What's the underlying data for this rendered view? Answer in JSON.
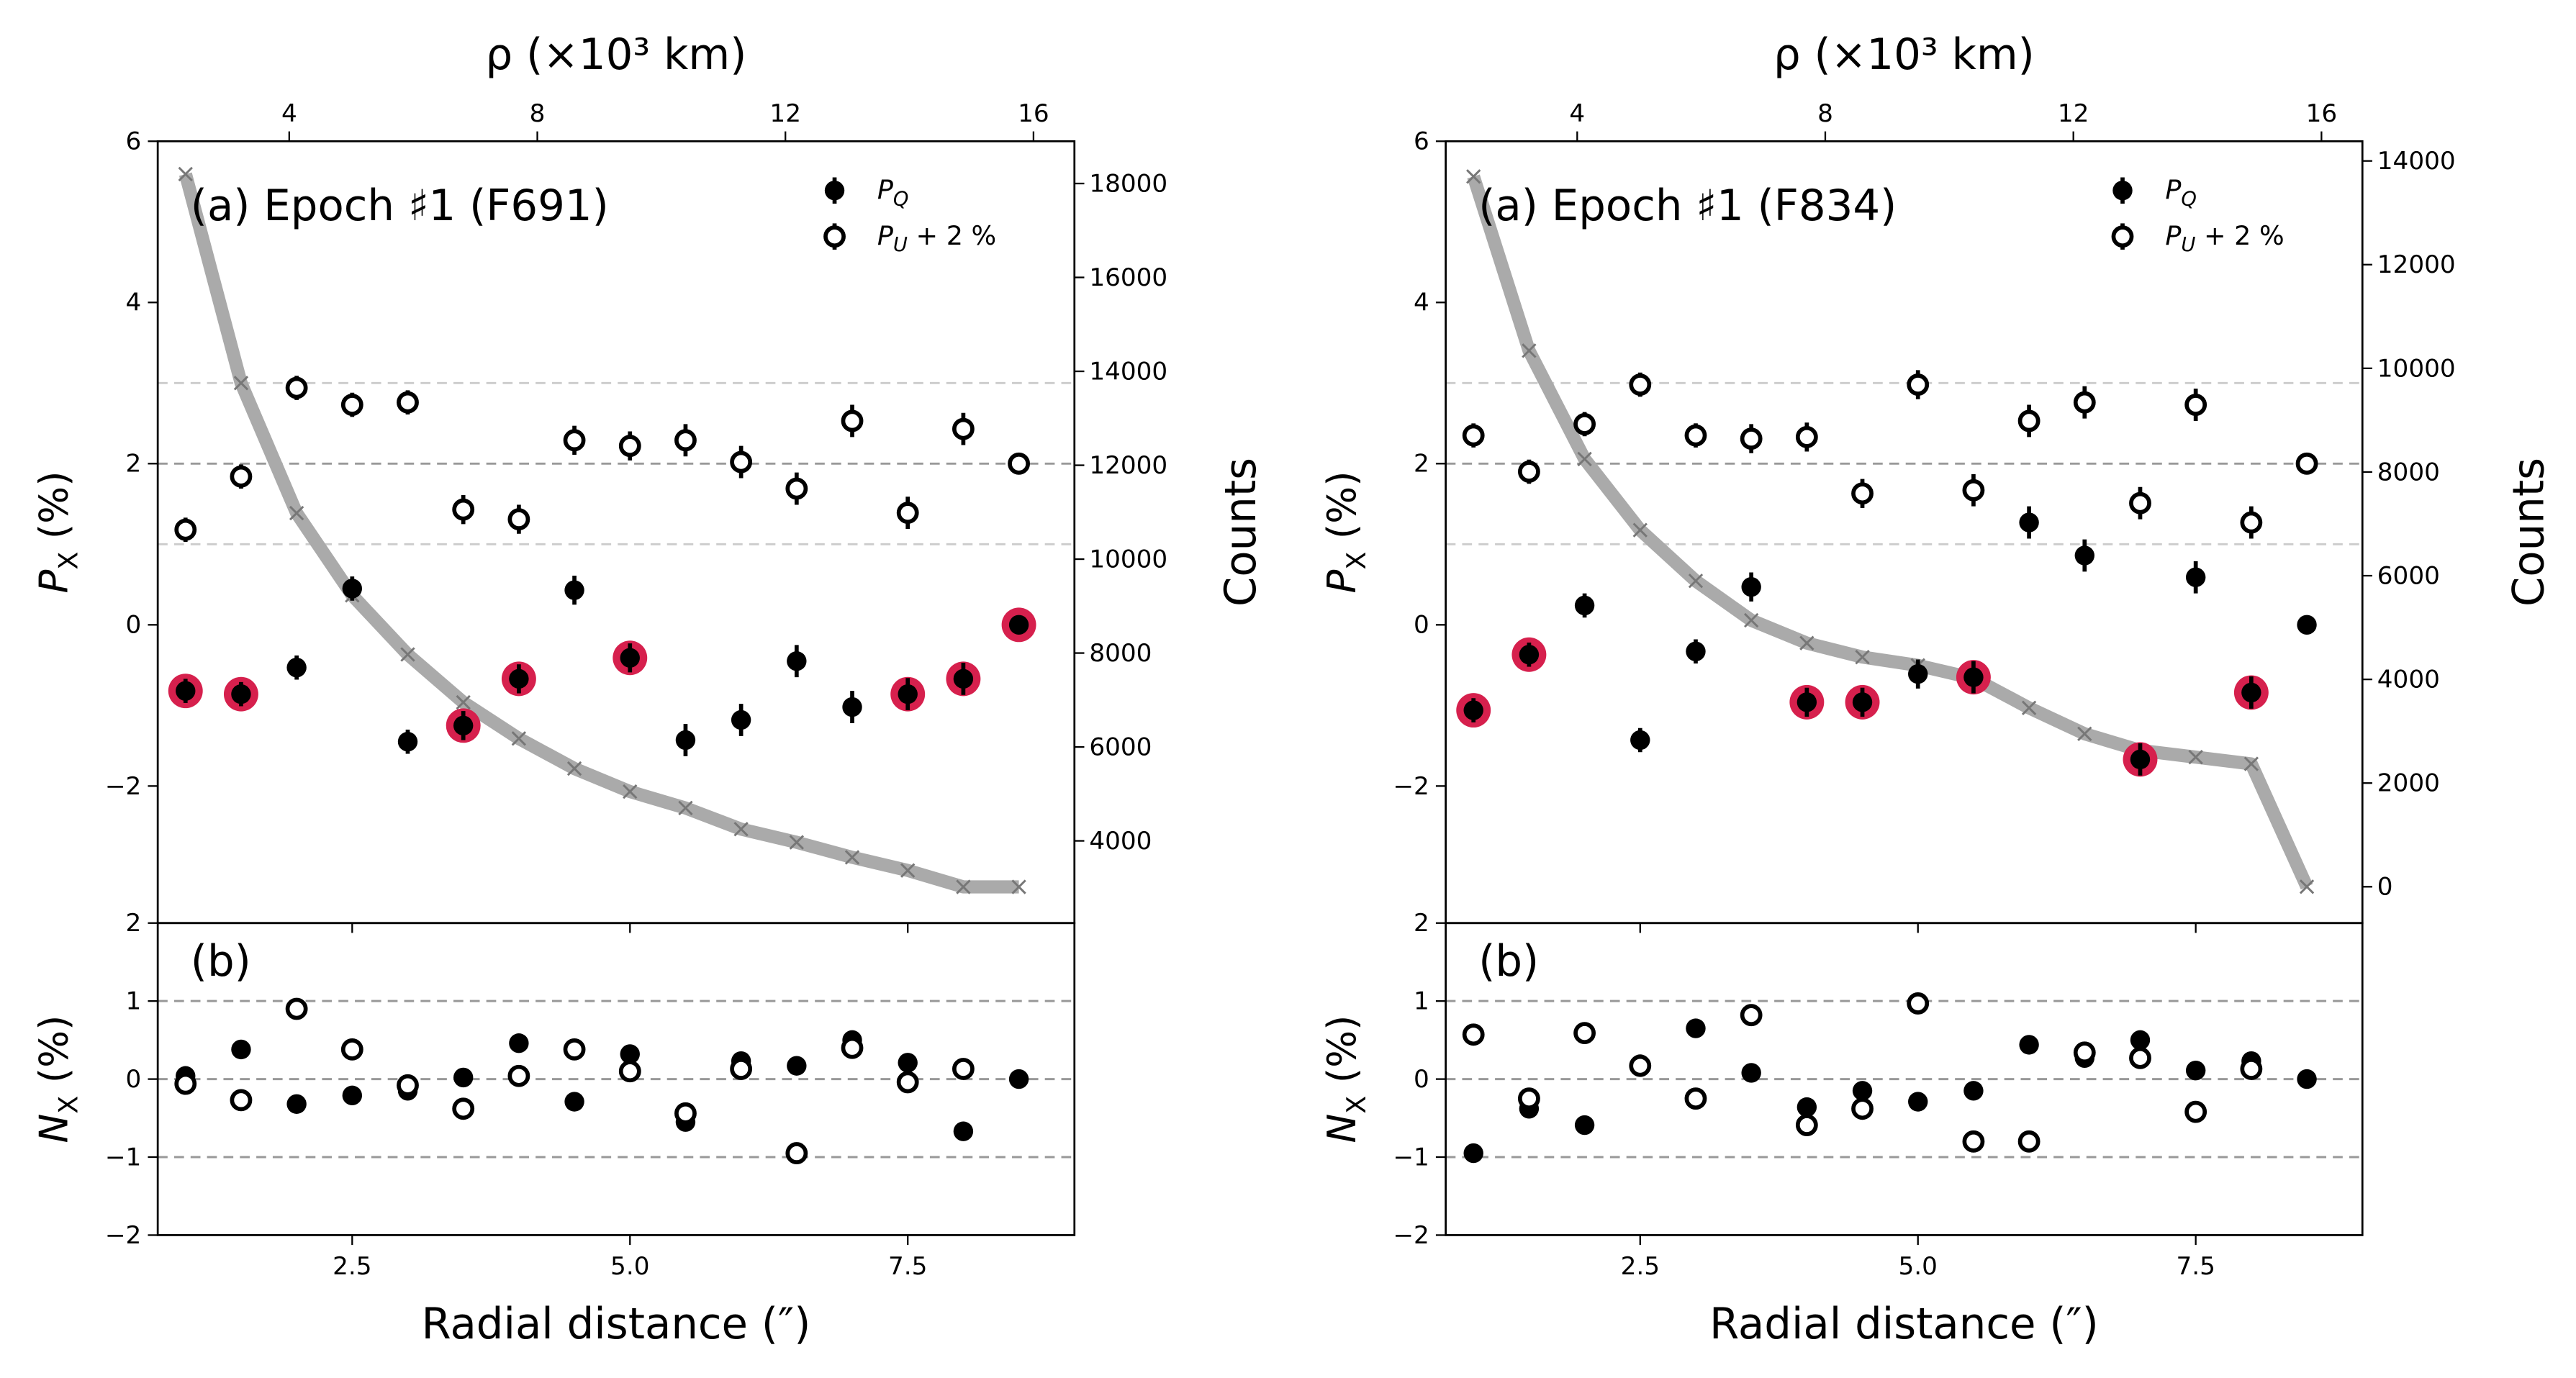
{
  "chart_data": [
    {
      "type": "scatter",
      "title": "ρ (×10³ km)",
      "annotation": "(a) Epoch ♯1 (F691)",
      "legend": "upper right",
      "x": [
        1.0,
        1.5,
        2.0,
        2.5,
        3.0,
        3.5,
        4.0,
        4.5,
        5.0,
        5.5,
        6.0,
        6.5,
        7.0,
        7.5,
        8.0,
        8.5
      ],
      "xlim": [
        0.75,
        9.0
      ],
      "xticks": [
        2.5,
        {
          "value": 5,
          "label": "5.0"
        },
        7.5
      ],
      "x2lim": [
        1.88,
        16.66
      ],
      "x2ticks": [
        4,
        8,
        12,
        16
      ],
      "ylim": [
        -3.7,
        6
      ],
      "yticks": [
        {
          "value": -2,
          "label": "−2"
        },
        0,
        2,
        4,
        6
      ],
      "ylabel": {
        "main": "P",
        "sub": "X",
        "rest": " (%)"
      },
      "y2lim": [
        2250,
        18900
      ],
      "y2ticks": [
        4000,
        6000,
        8000,
        10000,
        12000,
        14000,
        16000,
        18000
      ],
      "y2label": "Counts",
      "hlines": [
        {
          "value": 3,
          "color": "#cccccc"
        },
        {
          "value": 2,
          "color": "#999999"
        },
        {
          "value": 1,
          "color": "#cccccc"
        }
      ],
      "series": [
        {
          "name": "P",
          "name_sub": "Q",
          "color": "#000000",
          "marker": "filled",
          "values": [
            -0.82,
            -0.86,
            -0.53,
            0.45,
            -1.45,
            -1.25,
            -0.67,
            0.43,
            -0.41,
            -1.43,
            -1.18,
            -0.45,
            -1.02,
            -0.86,
            -0.67,
            0
          ],
          "errors": [
            0.15,
            0.15,
            0.15,
            0.15,
            0.15,
            0.18,
            0.18,
            0.18,
            0.18,
            0.2,
            0.2,
            0.2,
            0.2,
            0.2,
            0.2,
            0
          ]
        },
        {
          "name": "P",
          "name_sub": "U",
          "name_rest": " + 2 %",
          "color": "#000000",
          "marker": "open",
          "values": [
            1.18,
            1.84,
            2.94,
            2.73,
            2.76,
            1.43,
            1.31,
            2.29,
            2.22,
            2.29,
            2.02,
            1.69,
            2.53,
            1.39,
            2.43,
            2.0
          ],
          "errors": [
            0.15,
            0.15,
            0.15,
            0.15,
            0.15,
            0.18,
            0.18,
            0.18,
            0.18,
            0.2,
            0.2,
            0.2,
            0.2,
            0.2,
            0.2,
            0
          ]
        },
        {
          "color": "#d6204d",
          "marker": "ring",
          "values": [
            -0.82,
            -0.86,
            null,
            null,
            null,
            -1.25,
            -0.67,
            null,
            -0.41,
            null,
            null,
            null,
            null,
            -0.86,
            -0.67,
            0
          ]
        },
        {
          "color": "#aaaaaa",
          "marker": "line",
          "axis": "y2",
          "values": [
            18200,
            13750,
            10980,
            9230,
            7970,
            6950,
            6180,
            5540,
            5050,
            4700,
            4250,
            3970,
            3650,
            3370,
            3020,
            3020
          ]
        }
      ],
      "lower": {
        "annotation": "(b)",
        "xlabel": "Radial distance (″)",
        "ylim": [
          -2,
          2
        ],
        "yticks": [
          {
            "value": -2,
            "label": "−2"
          },
          {
            "value": -1,
            "label": "−1"
          },
          0,
          1,
          2
        ],
        "ylabel": {
          "main": "N",
          "sub": "X",
          "rest": " (%)"
        },
        "hlines": [
          {
            "value": 1,
            "color": "#999999"
          },
          {
            "value": 0,
            "color": "#999999"
          },
          {
            "value": -1,
            "color": "#999999"
          }
        ],
        "series": [
          {
            "color": "#000000",
            "marker": "filled",
            "values": [
              0.04,
              0.38,
              -0.32,
              -0.21,
              -0.15,
              0.02,
              0.46,
              -0.29,
              0.32,
              -0.55,
              0.23,
              0.17,
              0.5,
              0.21,
              -0.67,
              0
            ]
          },
          {
            "color": "#000000",
            "marker": "open",
            "values": [
              -0.06,
              -0.27,
              0.9,
              0.38,
              -0.08,
              -0.38,
              0.04,
              0.38,
              0.1,
              -0.44,
              0.13,
              -0.95,
              0.4,
              -0.04,
              0.13,
              null
            ]
          }
        ]
      }
    },
    {
      "type": "scatter",
      "title": "ρ (×10³ km)",
      "annotation": "(a) Epoch ♯1 (F834)",
      "legend": "upper right",
      "x": [
        1.0,
        1.5,
        2.0,
        2.5,
        3.0,
        3.5,
        4.0,
        4.5,
        5.0,
        5.5,
        6.0,
        6.5,
        7.0,
        7.5,
        8.0,
        8.5
      ],
      "xlim": [
        0.75,
        9.0
      ],
      "xticks": [
        2.5,
        {
          "value": 5,
          "label": "5.0"
        },
        7.5
      ],
      "x2lim": [
        1.88,
        16.66
      ],
      "x2ticks": [
        4,
        8,
        12,
        16
      ],
      "ylim": [
        -3.7,
        6
      ],
      "yticks": [
        {
          "value": -2,
          "label": "−2"
        },
        0,
        2,
        4,
        6
      ],
      "ylabel": {
        "main": "P",
        "sub": "X",
        "rest": " (%)"
      },
      "y2lim": [
        -700,
        14380
      ],
      "y2ticks": [
        0,
        2000,
        4000,
        6000,
        8000,
        10000,
        12000,
        14000
      ],
      "y2label": "Counts",
      "hlines": [
        {
          "value": 3,
          "color": "#cccccc"
        },
        {
          "value": 2,
          "color": "#999999"
        },
        {
          "value": 1,
          "color": "#cccccc"
        }
      ],
      "series": [
        {
          "name": "P",
          "name_sub": "Q",
          "color": "#000000",
          "marker": "filled",
          "values": [
            -1.06,
            -0.37,
            0.24,
            -1.43,
            -0.33,
            0.47,
            -0.96,
            -0.96,
            -0.61,
            -0.65,
            1.27,
            0.86,
            -1.67,
            0.59,
            -0.84,
            0
          ],
          "errors": [
            0.15,
            0.15,
            0.15,
            0.15,
            0.15,
            0.18,
            0.18,
            0.18,
            0.18,
            0.2,
            0.2,
            0.2,
            0.2,
            0.2,
            0.2,
            0
          ]
        },
        {
          "name": "P",
          "name_sub": "U",
          "name_rest": " + 2 %",
          "color": "#000000",
          "marker": "open",
          "values": [
            2.35,
            1.9,
            2.49,
            2.98,
            2.35,
            2.31,
            2.33,
            1.63,
            2.98,
            1.67,
            2.53,
            2.76,
            1.51,
            2.73,
            1.27,
            2.0
          ],
          "errors": [
            0.15,
            0.15,
            0.15,
            0.15,
            0.15,
            0.18,
            0.18,
            0.18,
            0.18,
            0.2,
            0.2,
            0.2,
            0.2,
            0.2,
            0.2,
            0
          ]
        },
        {
          "color": "#d6204d",
          "marker": "ring",
          "values": [
            -1.06,
            -0.37,
            null,
            null,
            null,
            null,
            -0.96,
            -0.96,
            null,
            -0.65,
            null,
            null,
            -1.67,
            null,
            -0.84,
            null
          ]
        },
        {
          "color": "#aaaaaa",
          "marker": "line",
          "axis": "y2",
          "values": [
            13700,
            10340,
            8250,
            6880,
            5900,
            5140,
            4700,
            4430,
            4270,
            4020,
            3450,
            2950,
            2630,
            2500,
            2370,
            0
          ]
        }
      ],
      "lower": {
        "annotation": "(b)",
        "xlabel": "Radial distance (″)",
        "ylim": [
          -2,
          2
        ],
        "yticks": [
          {
            "value": -2,
            "label": "−2"
          },
          {
            "value": -1,
            "label": "−1"
          },
          0,
          1,
          2
        ],
        "ylabel": {
          "main": "N",
          "sub": "X",
          "rest": " (%)"
        },
        "hlines": [
          {
            "value": 1,
            "color": "#999999"
          },
          {
            "value": 0,
            "color": "#999999"
          },
          {
            "value": -1,
            "color": "#999999"
          }
        ],
        "series": [
          {
            "color": "#000000",
            "marker": "filled",
            "values": [
              -0.95,
              -0.38,
              -0.59,
              0.19,
              0.65,
              0.08,
              -0.36,
              -0.15,
              -0.29,
              -0.15,
              0.44,
              0.27,
              0.5,
              0.11,
              0.23,
              0
            ]
          },
          {
            "color": "#000000",
            "marker": "open",
            "values": [
              0.57,
              -0.25,
              0.59,
              0.17,
              -0.25,
              0.82,
              -0.59,
              -0.38,
              0.97,
              -0.8,
              -0.8,
              0.34,
              0.27,
              -0.42,
              0.13,
              null
            ]
          }
        ]
      }
    }
  ]
}
